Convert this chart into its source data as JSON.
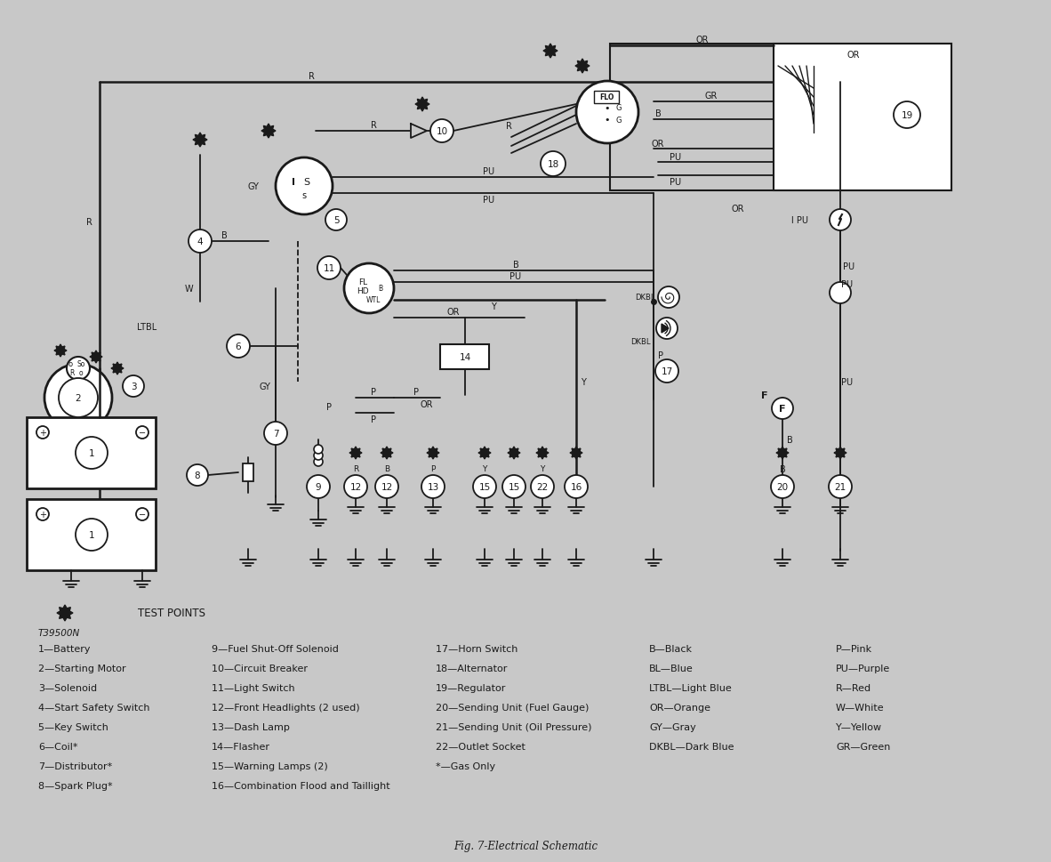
{
  "title": "Fig. 7-Electrical Schematic",
  "bg_color": "#c8c8c8",
  "line_color": "#1a1a1a",
  "legend_items_col1": [
    "1—Battery",
    "2—Starting Motor",
    "3—Solenoid",
    "4—Start Safety Switch",
    "5—Key Switch",
    "6—Coil*",
    "7—Distributor*",
    "8—Spark Plug*"
  ],
  "legend_items_col2": [
    "9—Fuel Shut-Off Solenoid",
    "10—Circuit Breaker",
    "11—Light Switch",
    "12—Front Headlights (2 used)",
    "13—Dash Lamp",
    "14—Flasher",
    "15—Warning Lamps (2)",
    "16—Combination Flood and Taillight"
  ],
  "legend_items_col3": [
    "17—Horn Switch",
    "18—Alternator",
    "19—Regulator",
    "20—Sending Unit (Fuel Gauge)",
    "21—Sending Unit (Oil Pressure)",
    "22—Outlet Socket",
    "*—Gas Only"
  ],
  "legend_items_col4": [
    "B—Black",
    "BL—Blue",
    "LTBL—Light Blue",
    "OR—Orange",
    "GY—Gray",
    "DKBL—Dark Blue"
  ],
  "legend_items_col5": [
    "P—Pink",
    "PU—Purple",
    "R—Red",
    "W—White",
    "Y—Yellow",
    "GR—Green"
  ],
  "model_code": "T39500N",
  "test_points_label": "TEST POINTS"
}
